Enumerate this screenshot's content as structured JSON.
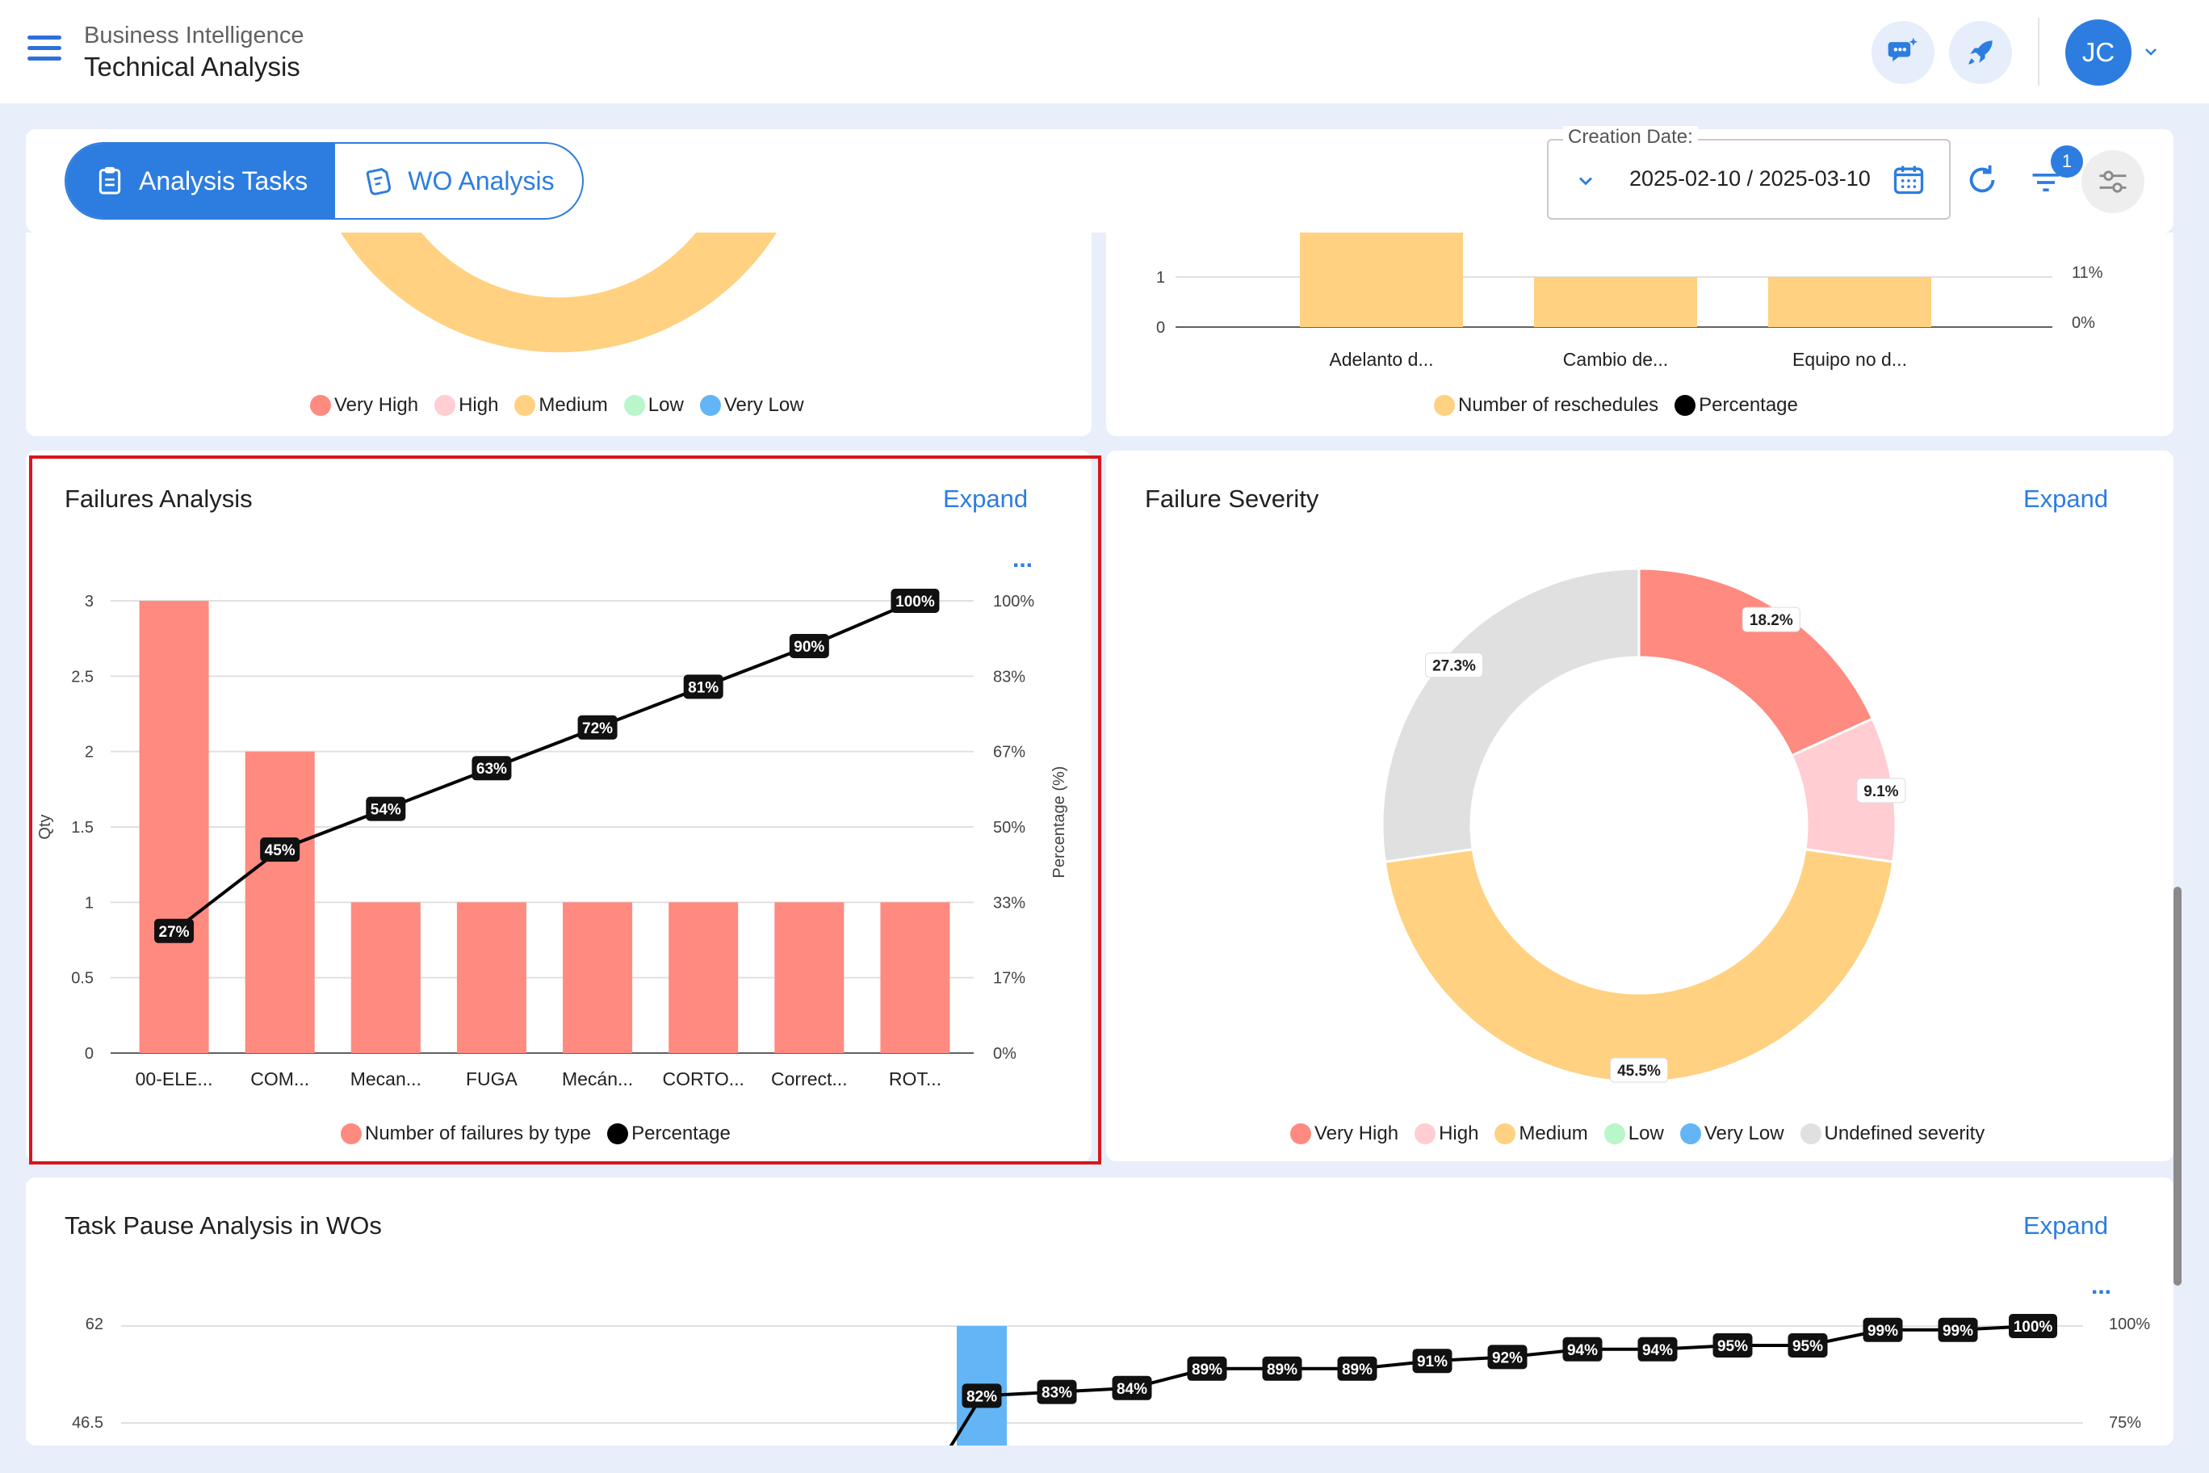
{
  "header": {
    "breadcrumb_parent": "Business Intelligence",
    "breadcrumb_title": "Technical Analysis",
    "avatar_initials": "JC"
  },
  "toolbar": {
    "tabs": [
      {
        "label": "Analysis Tasks",
        "active": true
      },
      {
        "label": "WO Analysis",
        "active": false
      }
    ],
    "date_filter": {
      "label": "Creation Date:",
      "value": "2025-02-10 / 2025-03-10"
    },
    "filter_badge": "1"
  },
  "colors": {
    "very_high": "#ff8a80",
    "high": "#ffcdd2",
    "medium": "#ffd180",
    "low": "#b9f6ca",
    "very_low": "#64b5f6",
    "undefined": "#e0e0e0",
    "accent": "#2d7de0"
  },
  "top_left_card": {
    "legend": [
      "Very High",
      "High",
      "Medium",
      "Low",
      "Very Low"
    ]
  },
  "top_right_card": {
    "chart_data": {
      "type": "bar",
      "categories": [
        "Adelanto d...",
        "Cambio de...",
        "Equipo no d..."
      ],
      "y_ticks": [
        "1",
        "0"
      ],
      "y2_ticks": [
        "11%",
        "0%"
      ],
      "legend": [
        "Number of reschedules",
        "Percentage"
      ]
    }
  },
  "failures_analysis": {
    "title": "Failures Analysis",
    "expand": "Expand",
    "more": "...",
    "chart_data": {
      "type": "bar",
      "categories": [
        "00-ELE...",
        "COM...",
        "Mecan...",
        "FUGA",
        "Mecán...",
        "CORTO...",
        "Correct...",
        "ROT..."
      ],
      "series": [
        {
          "name": "Number of failures by type",
          "values": [
            3,
            2,
            1,
            1,
            1,
            1,
            1,
            1
          ]
        },
        {
          "name": "Percentage",
          "values": [
            27,
            45,
            54,
            63,
            72,
            81,
            90,
            100
          ]
        }
      ],
      "point_labels": [
        "27%",
        "45%",
        "54%",
        "63%",
        "72%",
        "81%",
        "90%",
        "100%"
      ],
      "ylabel": "Qty",
      "y2label": "Percentage (%)",
      "ylim": [
        0,
        3
      ],
      "y2lim": [
        0,
        100
      ],
      "y_ticks": [
        "3",
        "2.5",
        "2",
        "1.5",
        "1",
        "0.5",
        "0"
      ],
      "y2_ticks": [
        "100%",
        "83%",
        "67%",
        "50%",
        "33%",
        "17%",
        "0%"
      ],
      "legend": [
        "Number of failures by type",
        "Percentage"
      ]
    }
  },
  "failure_severity": {
    "title": "Failure Severity",
    "expand": "Expand",
    "chart_data": {
      "type": "pie",
      "categories": [
        "Very High",
        "High",
        "Medium",
        "Undefined severity"
      ],
      "values": [
        18.2,
        9.1,
        45.5,
        27.3
      ],
      "labels": [
        "18.2%",
        "9.1%",
        "45.5%",
        "27.3%"
      ],
      "legend": [
        "Very High",
        "High",
        "Medium",
        "Low",
        "Very Low",
        "Undefined severity"
      ]
    }
  },
  "task_pause": {
    "title": "Task Pause Analysis in WOs",
    "expand": "Expand",
    "more": "...",
    "chart_data": {
      "type": "line",
      "y_ticks": [
        "62",
        "46.5"
      ],
      "y2_ticks": [
        "100%",
        "75%"
      ],
      "percentage_labels": [
        "82%",
        "83%",
        "84%",
        "89%",
        "89%",
        "89%",
        "91%",
        "92%",
        "94%",
        "94%",
        "95%",
        "95%",
        "99%",
        "99%",
        "100%"
      ],
      "percentage_values": [
        82,
        83,
        84,
        89,
        89,
        89,
        91,
        92,
        94,
        94,
        95,
        95,
        99,
        99,
        100
      ]
    }
  }
}
